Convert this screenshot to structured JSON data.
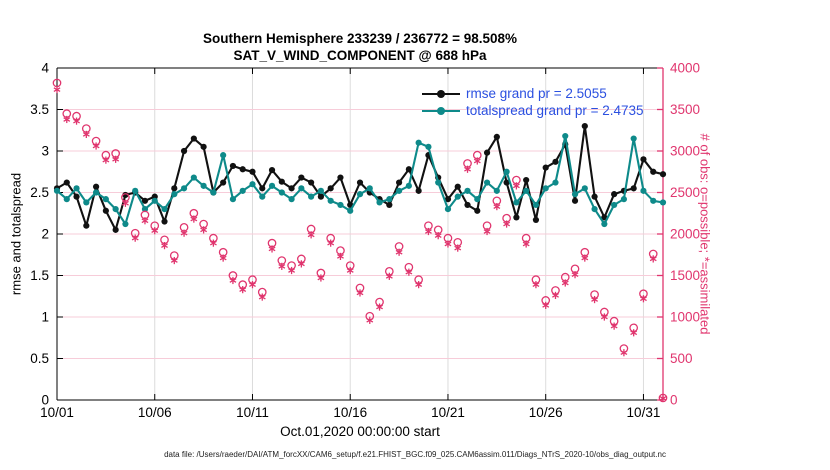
{
  "title": {
    "line1": "Southern Hemisphere 233239 / 236772 = 98.508%",
    "line2": "SAT_V_WIND_COMPONENT @ 688 hPa"
  },
  "legend": [
    {
      "label": "rmse grand pr = 2.5055",
      "color": "#111111"
    },
    {
      "label": "totalspread grand pr = 2.4735",
      "color": "#0e8a8a"
    }
  ],
  "footer": "data file: /Users/raeder/DAI/ATM_forcXX/CAM6_setup/f.e21.FHIST_BGC.f09_025.CAM6assim.011/Diags_NTrS_2020-10/obs_diag_output.nc",
  "colors": {
    "rmse_line": "#111111",
    "totalspread_line": "#0e8a8a",
    "obs_markers": "#e0356e",
    "legend_text": "#2b50e0",
    "h_grid": "#f7ccd9",
    "v_grid": "#dcdcdc",
    "axis_black": "#000000",
    "axis_pink": "#e0356e"
  },
  "chart_data": {
    "type": "line",
    "title": "Southern Hemisphere 233239 / 236772 = 98.508% | SAT_V_WIND_COMPONENT @ 688 hPa",
    "xlabel": "Oct.01,2020 00:00:00 start",
    "x_range_days": [
      0,
      31
    ],
    "x_tick_days": [
      0,
      5,
      10,
      15,
      20,
      25,
      30
    ],
    "x_tick_labels": [
      "10/01",
      "10/06",
      "10/11",
      "10/16",
      "10/21",
      "10/26",
      "10/31"
    ],
    "grid": true,
    "legend_position": "top-right-inside",
    "left_axis": {
      "label": "rmse and totalspread",
      "range": [
        0,
        4
      ],
      "ticks": [
        0,
        0.5,
        1,
        1.5,
        2,
        2.5,
        3,
        3.5,
        4
      ],
      "tick_labels": [
        "0",
        "0.5",
        "1",
        "1.5",
        "2",
        "2.5",
        "3",
        "3.5",
        "4"
      ]
    },
    "right_axis": {
      "label": "# of obs: o=possible; *=assimilated",
      "range": [
        0,
        4000
      ],
      "ticks": [
        0,
        500,
        1000,
        1500,
        2000,
        2500,
        3000,
        3500,
        4000
      ],
      "tick_labels": [
        "0",
        "500",
        "1000",
        "1500",
        "2000",
        "2500",
        "3000",
        "3500",
        "4000"
      ]
    },
    "t_days": [
      0,
      0.5,
      1,
      1.5,
      2,
      2.5,
      3,
      3.5,
      4,
      4.5,
      5,
      5.5,
      6,
      6.5,
      7,
      7.5,
      8,
      8.5,
      9,
      9.5,
      10,
      10.5,
      11,
      11.5,
      12,
      12.5,
      13,
      13.5,
      14,
      14.5,
      15,
      15.5,
      16,
      16.5,
      17,
      17.5,
      18,
      18.5,
      19,
      19.5,
      20,
      20.5,
      21,
      21.5,
      22,
      22.5,
      23,
      23.5,
      24,
      24.5,
      25,
      25.5,
      26,
      26.5,
      27,
      27.5,
      28,
      28.5,
      29,
      29.5,
      30,
      30.5,
      31
    ],
    "series": [
      {
        "name": "rmse",
        "axis": "left",
        "color": "#111111",
        "marker": "filled-circle",
        "line": true,
        "grand_pr": 2.5055,
        "values": [
          2.55,
          2.62,
          2.45,
          2.1,
          2.57,
          2.28,
          2.05,
          2.47,
          2.5,
          2.4,
          2.45,
          2.15,
          2.55,
          3.0,
          3.15,
          3.05,
          2.5,
          2.62,
          2.82,
          2.78,
          2.75,
          2.55,
          2.77,
          2.63,
          2.55,
          2.68,
          2.62,
          2.45,
          2.55,
          2.68,
          2.35,
          2.62,
          2.5,
          2.42,
          2.35,
          2.62,
          2.78,
          2.52,
          2.95,
          2.68,
          2.42,
          2.57,
          2.35,
          2.28,
          2.98,
          3.17,
          2.62,
          2.2,
          2.65,
          2.17,
          2.8,
          2.87,
          3.08,
          2.4,
          3.3,
          2.45,
          2.2,
          2.48,
          2.52,
          2.55,
          2.9,
          2.75,
          2.72
        ]
      },
      {
        "name": "totalspread",
        "axis": "left",
        "color": "#0e8a8a",
        "marker": "filled-circle",
        "line": true,
        "grand_pr": 2.4735,
        "values": [
          2.52,
          2.42,
          2.55,
          2.38,
          2.5,
          2.42,
          2.3,
          2.12,
          2.52,
          2.3,
          2.4,
          2.3,
          2.48,
          2.55,
          2.68,
          2.58,
          2.5,
          2.95,
          2.42,
          2.52,
          2.6,
          2.45,
          2.58,
          2.5,
          2.42,
          2.55,
          2.45,
          2.52,
          2.4,
          2.35,
          2.28,
          2.48,
          2.55,
          2.38,
          2.42,
          2.52,
          2.58,
          3.1,
          3.05,
          2.62,
          2.3,
          2.45,
          2.52,
          2.42,
          2.62,
          2.52,
          2.75,
          2.38,
          2.52,
          2.35,
          2.55,
          2.62,
          3.18,
          2.48,
          2.55,
          2.3,
          2.12,
          2.35,
          2.42,
          3.15,
          2.52,
          2.4,
          2.38
        ]
      },
      {
        "name": "possible_obs",
        "axis": "right",
        "color": "#e0356e",
        "marker": "open-circle",
        "line": false,
        "values": [
          3820,
          3450,
          3420,
          3270,
          3120,
          2950,
          2970,
          2440,
          2010,
          2230,
          2100,
          1930,
          1740,
          2080,
          2250,
          2120,
          1950,
          1780,
          1500,
          1390,
          1450,
          1300,
          1890,
          1680,
          1620,
          1700,
          2060,
          1530,
          1950,
          1800,
          1620,
          1350,
          1010,
          1180,
          1550,
          1850,
          1600,
          1450,
          2100,
          2050,
          1950,
          1900,
          2850,
          2950,
          2100,
          2400,
          2190,
          2650,
          1950,
          1450,
          1200,
          1320,
          1480,
          1580,
          1780,
          1270,
          1060,
          950,
          620,
          870,
          1280,
          1760,
          25
        ]
      },
      {
        "name": "assimilated_obs",
        "axis": "right",
        "color": "#e0356e",
        "marker": "asterisk",
        "line": false,
        "values": [
          3740,
          3380,
          3360,
          3200,
          3060,
          2890,
          2900,
          2370,
          1950,
          2160,
          2040,
          1860,
          1680,
          2010,
          2180,
          2050,
          1890,
          1710,
          1440,
          1330,
          1390,
          1240,
          1820,
          1610,
          1560,
          1640,
          1990,
          1470,
          1890,
          1730,
          1560,
          1290,
          960,
          1120,
          1490,
          1780,
          1540,
          1390,
          2030,
          1980,
          1880,
          1830,
          2780,
          2880,
          2030,
          2330,
          2120,
          2580,
          1880,
          1390,
          1140,
          1260,
          1410,
          1510,
          1710,
          1210,
          1000,
          890,
          570,
          810,
          1220,
          1700,
          20
        ]
      }
    ]
  }
}
